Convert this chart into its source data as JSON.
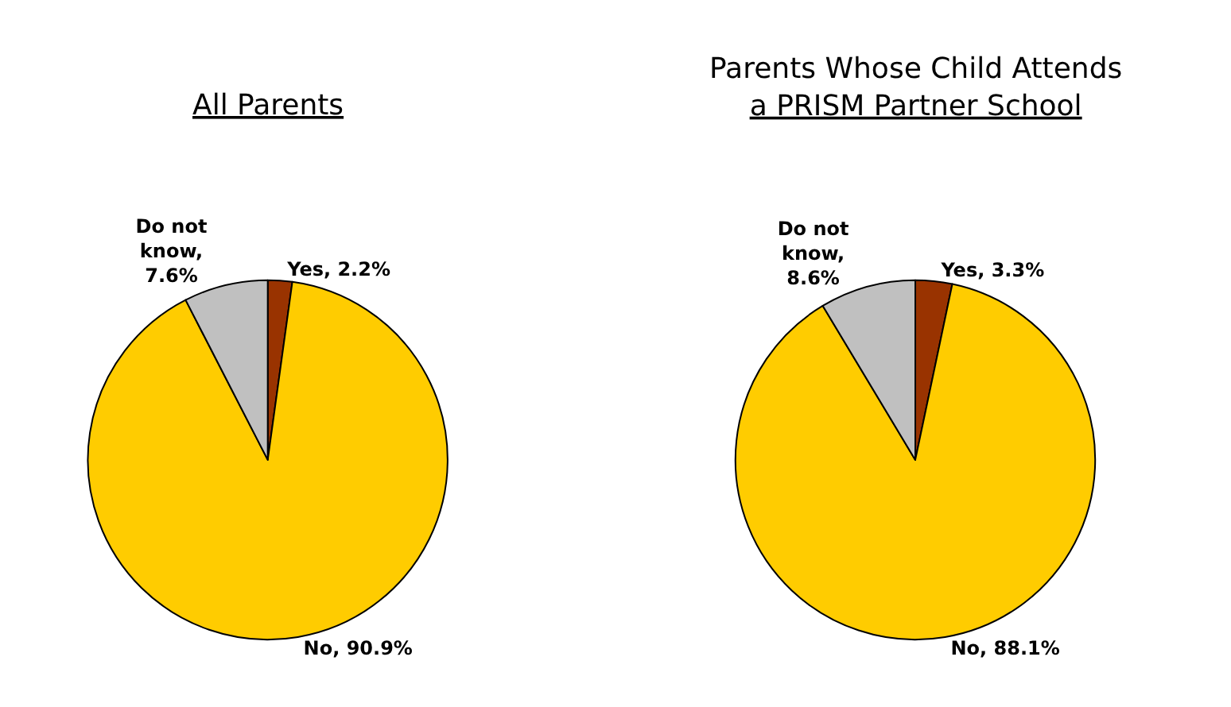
{
  "chart_data": [
    {
      "type": "pie",
      "title": "All Parents",
      "categories": [
        "Yes, 2.2%",
        "No, 90.9%",
        "Do not know, 7.6%"
      ],
      "values": [
        2.2,
        90.9,
        7.6
      ],
      "colors": [
        "#993300",
        "#ffcc00",
        "#c0c0c0"
      ]
    },
    {
      "type": "pie",
      "title": "Parents Whose Child Attends a PRISM Partner School",
      "categories": [
        "Yes, 3.3%",
        "No, 88.1%",
        "Do not know, 8.6%"
      ],
      "values": [
        3.3,
        88.1,
        8.6
      ],
      "colors": [
        "#993300",
        "#ffcc00",
        "#c0c0c0"
      ]
    }
  ]
}
